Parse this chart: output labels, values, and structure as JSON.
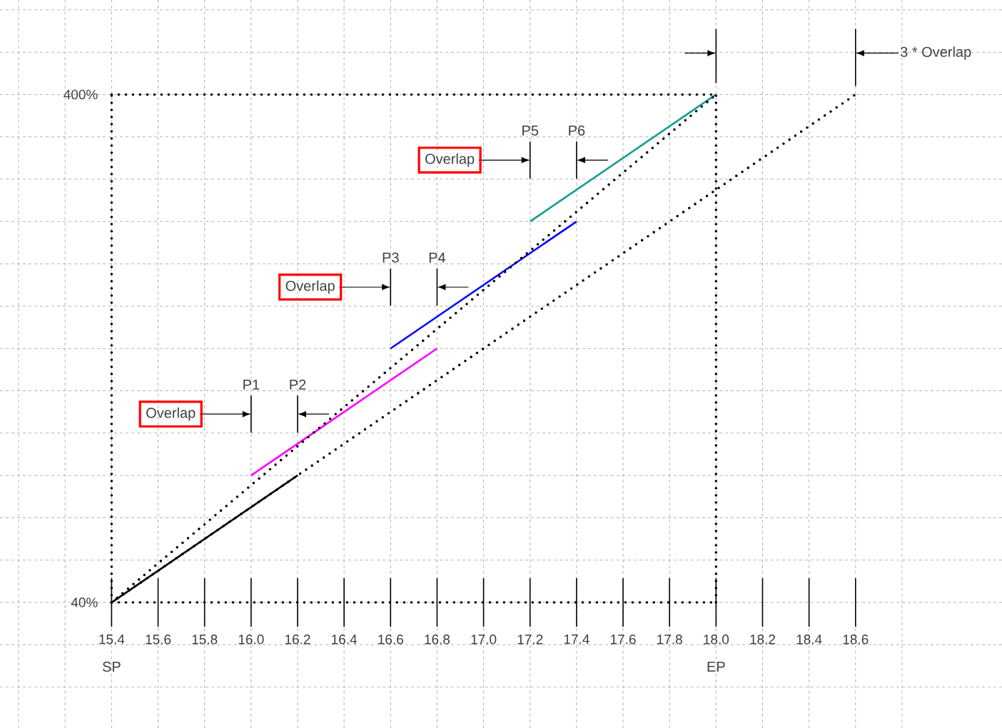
{
  "chart_data": {
    "type": "line",
    "xlim": [
      14.92,
      19.23
    ],
    "ylim": [
      -49,
      467
    ],
    "xticks": [
      {
        "value": 15.0,
        "label": null
      },
      {
        "value": 15.2,
        "label": null
      },
      {
        "value": 15.4,
        "label": "15.4"
      },
      {
        "value": 15.6,
        "label": "15.6"
      },
      {
        "value": 15.8,
        "label": "15.8"
      },
      {
        "value": 16.0,
        "label": "16.0"
      },
      {
        "value": 16.2,
        "label": "16.2"
      },
      {
        "value": 16.4,
        "label": "16.4"
      },
      {
        "value": 16.6,
        "label": "16.6"
      },
      {
        "value": 16.8,
        "label": "16.8"
      },
      {
        "value": 17.0,
        "label": "17.0"
      },
      {
        "value": 17.2,
        "label": "17.2"
      },
      {
        "value": 17.4,
        "label": "17.4"
      },
      {
        "value": 17.6,
        "label": "17.6"
      },
      {
        "value": 17.8,
        "label": "17.8"
      },
      {
        "value": 18.0,
        "label": "18.0"
      },
      {
        "value": 18.2,
        "label": "18.2"
      },
      {
        "value": 18.4,
        "label": "18.4"
      },
      {
        "value": 18.6,
        "label": "18.6"
      },
      {
        "value": 18.8,
        "label": null
      }
    ],
    "yticks": [
      {
        "value": -20,
        "label": null
      },
      {
        "value": 10,
        "label": null
      },
      {
        "value": 40,
        "label": "40%"
      },
      {
        "value": 70,
        "label": null
      },
      {
        "value": 100,
        "label": null
      },
      {
        "value": 130,
        "label": null
      },
      {
        "value": 160,
        "label": null
      },
      {
        "value": 190,
        "label": null
      },
      {
        "value": 220,
        "label": null
      },
      {
        "value": 250,
        "label": null
      },
      {
        "value": 280,
        "label": null
      },
      {
        "value": 310,
        "label": null
      },
      {
        "value": 340,
        "label": null
      },
      {
        "value": 370,
        "label": null
      },
      {
        "value": 400,
        "label": "400%"
      },
      {
        "value": 430,
        "label": null
      },
      {
        "value": 460,
        "label": null
      }
    ],
    "grid": true,
    "series": [
      {
        "color": "#000000",
        "x": [
          15.4,
          16.2
        ],
        "values": [
          40,
          130
        ]
      },
      {
        "color": "#ff00ff",
        "x": [
          16.0,
          16.8
        ],
        "values": [
          130,
          220
        ]
      },
      {
        "color": "#0000ff",
        "x": [
          16.6,
          17.4
        ],
        "values": [
          220,
          310
        ]
      },
      {
        "color": "#199b94",
        "x": [
          17.2,
          18.0
        ],
        "values": [
          310,
          400
        ]
      },
      {
        "color": "#000000",
        "x": [
          15.4,
          18.0
        ],
        "values": [
          40,
          400
        ],
        "line_style": "dotted"
      },
      {
        "color": "#000000",
        "x": [
          15.4,
          18.6
        ],
        "values": [
          40,
          400
        ],
        "line_style": "dotted"
      },
      {
        "color": "#000000",
        "x": [
          15.4,
          18.0
        ],
        "values": [
          400,
          400
        ],
        "line_style": "dotted"
      },
      {
        "color": "#000000",
        "x": [
          15.4,
          18.0
        ],
        "values": [
          40,
          40
        ],
        "line_style": "dotted"
      },
      {
        "color": "#000000",
        "x": [
          15.4,
          15.4
        ],
        "values": [
          40,
          400
        ],
        "line_style": "dotted"
      },
      {
        "color": "#000000",
        "x": [
          18.0,
          18.0
        ],
        "values": [
          40,
          400
        ],
        "line_style": "dotted"
      }
    ],
    "annotations": [
      "Overlap",
      "P1",
      "P2",
      "Overlap",
      "P3",
      "P4",
      "Overlap",
      "P5",
      "P6",
      "3 * Overlap",
      "SP",
      "EP"
    ]
  }
}
